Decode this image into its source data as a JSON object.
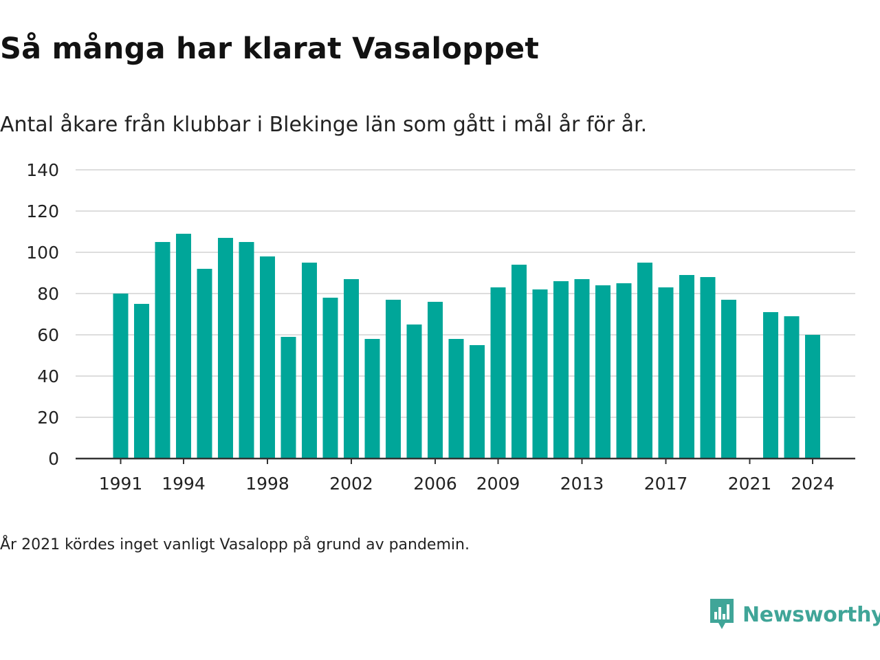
{
  "header": {
    "title": "Så många har klarat Vasaloppet",
    "subtitle": "Antal åkare från klubbar i Blekinge län som gått i mål år för år."
  },
  "footer": {
    "note": "År 2021 kördes inget vanligt Vasalopp på grund av pandemin.",
    "brand": "Newsworthy"
  },
  "colors": {
    "bar": "#00a699",
    "grid": "#dddddd",
    "axis": "#333333",
    "brand": "#40a598"
  },
  "chart_data": {
    "type": "bar",
    "title": "Så många har klarat Vasaloppet",
    "subtitle": "Antal åkare från klubbar i Blekinge län som gått i mål år för år.",
    "xlabel": "",
    "ylabel": "",
    "ylim": [
      0,
      140
    ],
    "yticks": [
      0,
      20,
      40,
      60,
      80,
      100,
      120,
      140
    ],
    "xtick_labels": [
      "1991",
      "1994",
      "1998",
      "2002",
      "2006",
      "2009",
      "2013",
      "2017",
      "2021",
      "2024"
    ],
    "grid": true,
    "legend": "none",
    "categories": [
      1991,
      1992,
      1993,
      1994,
      1995,
      1996,
      1997,
      1998,
      1999,
      2000,
      2001,
      2002,
      2003,
      2004,
      2005,
      2006,
      2007,
      2008,
      2009,
      2010,
      2011,
      2012,
      2013,
      2014,
      2015,
      2016,
      2017,
      2018,
      2019,
      2020,
      2021,
      2022,
      2023,
      2024
    ],
    "values": [
      80,
      75,
      105,
      109,
      92,
      107,
      105,
      98,
      59,
      95,
      78,
      87,
      58,
      77,
      65,
      76,
      58,
      55,
      83,
      94,
      82,
      86,
      87,
      84,
      85,
      95,
      83,
      89,
      88,
      77,
      null,
      71,
      69,
      60
    ]
  }
}
